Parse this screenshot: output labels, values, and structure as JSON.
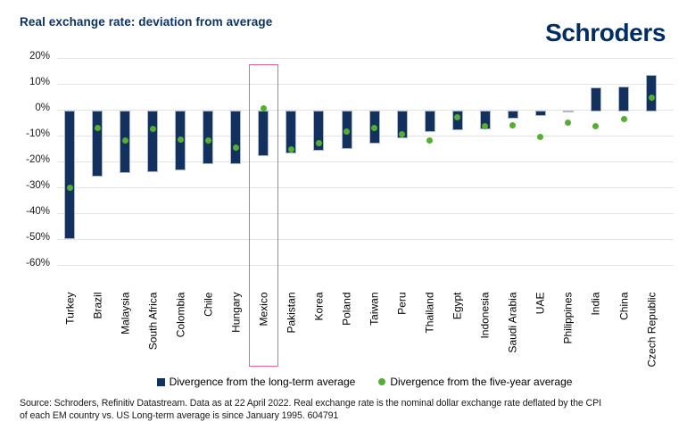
{
  "header": {
    "title": "Real exchange rate: deviation from average",
    "logo_text": "Schroders"
  },
  "chart_data": {
    "type": "bar",
    "title": "Real exchange rate: deviation from average",
    "categories": [
      "Turkey",
      "Brazil",
      "Malaysia",
      "South Africa",
      "Colombia",
      "Chile",
      "Hungary",
      "Mexico",
      "Pakistan",
      "Korea",
      "Poland",
      "Taiwan",
      "Peru",
      "Thailand",
      "Egypt",
      "Indonesia",
      "Saudi Arabia",
      "UAE",
      "Philippines",
      "India",
      "China",
      "Czech Republic"
    ],
    "series": [
      {
        "name": "Divergence from the long-term average",
        "type": "bar",
        "color": "#12315e",
        "values": [
          -50,
          -26,
          -24.5,
          -24,
          -23.5,
          -21,
          -21,
          -18,
          -17,
          -16,
          -15,
          -13,
          -11,
          -8.5,
          -8,
          -7.5,
          -3.5,
          -2.5,
          -0.5,
          8.5,
          9,
          13.5
        ]
      },
      {
        "name": "Divergence from the five-year average",
        "type": "scatter",
        "color": "#54ae32",
        "values": [
          -30,
          -7,
          -12,
          -7.5,
          -11.5,
          -12,
          -14.5,
          0.5,
          -15.5,
          -13,
          -8.5,
          -7,
          -9.5,
          -12,
          -3,
          -6.5,
          -6,
          -10.5,
          -5,
          -6.5,
          -3.5,
          4.5
        ]
      }
    ],
    "ylim": [
      -60,
      20
    ],
    "ytick_labels": [
      "20%",
      "10%",
      "0%",
      "-10%",
      "-20%",
      "-30%",
      "-40%",
      "-50%",
      "-60%"
    ],
    "ytick_values": [
      20,
      10,
      0,
      -10,
      -20,
      -30,
      -40,
      -50,
      -60
    ],
    "grid": "horizontal",
    "legend_position": "bottom",
    "highlight": {
      "category": "Mexico",
      "color": "#e8628f"
    }
  },
  "source": {
    "line1": "Source: Schroders, Refinitiv Datastream. Data as at 22 April 2022. Real exchange rate is the nominal dollar exchange rate deflated by the CPI",
    "line2": "of each EM country vs. US Long-term average is since January 1995. 604791"
  },
  "colors": {
    "navy": "#12315e",
    "green": "#54ae32",
    "pink": "#e8628f",
    "grid": "#e3e3e3",
    "title_navy": "#0b3261",
    "logo_navy": "#002d63"
  }
}
